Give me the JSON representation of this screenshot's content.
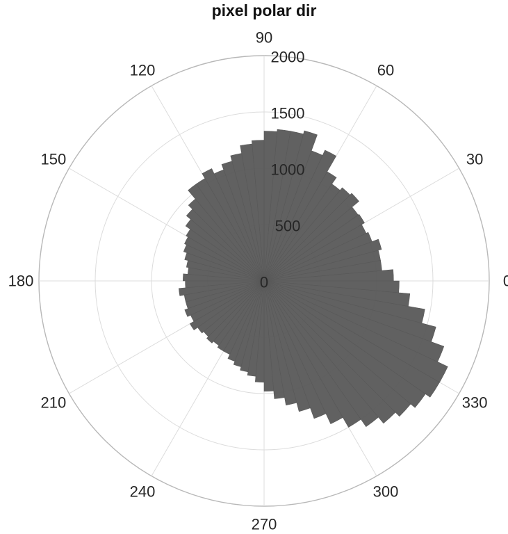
{
  "chart_data": {
    "type": "polar-histogram",
    "title": "pixel polar dir",
    "angle_unit": "degrees",
    "angular_ticks": [
      0,
      30,
      60,
      90,
      120,
      150,
      180,
      210,
      240,
      270,
      300,
      330
    ],
    "radial_ticks": [
      0,
      500,
      1000,
      1500,
      2000
    ],
    "rlim": [
      0,
      2000
    ],
    "bin_width_deg": 5,
    "bin_start_deg": [
      0,
      5,
      10,
      15,
      20,
      25,
      30,
      35,
      40,
      45,
      50,
      55,
      60,
      65,
      70,
      75,
      80,
      85,
      90,
      95,
      100,
      105,
      110,
      115,
      120,
      125,
      130,
      135,
      140,
      145,
      150,
      155,
      160,
      165,
      170,
      175,
      180,
      185,
      190,
      195,
      200,
      205,
      210,
      215,
      220,
      225,
      230,
      235,
      240,
      245,
      250,
      255,
      260,
      265,
      270,
      275,
      280,
      285,
      290,
      295,
      300,
      305,
      310,
      315,
      320,
      325,
      330,
      335,
      340,
      345,
      350,
      355
    ],
    "values": [
      1150,
      1050,
      1050,
      1080,
      1020,
      1000,
      1030,
      1020,
      1100,
      1080,
      1050,
      1120,
      1280,
      1230,
      1380,
      1350,
      1350,
      1330,
      1250,
      1220,
      1150,
      1100,
      1050,
      1100,
      1050,
      1050,
      950,
      900,
      850,
      800,
      780,
      760,
      730,
      700,
      680,
      720,
      700,
      760,
      720,
      720,
      750,
      720,
      760,
      720,
      700,
      720,
      700,
      720,
      720,
      760,
      790,
      820,
      850,
      900,
      980,
      1050,
      1120,
      1200,
      1300,
      1400,
      1500,
      1580,
      1650,
      1700,
      1750,
      1800,
      1800,
      1700,
      1580,
      1450,
      1300,
      1200
    ],
    "bar_color": "#595959",
    "grid": true
  }
}
